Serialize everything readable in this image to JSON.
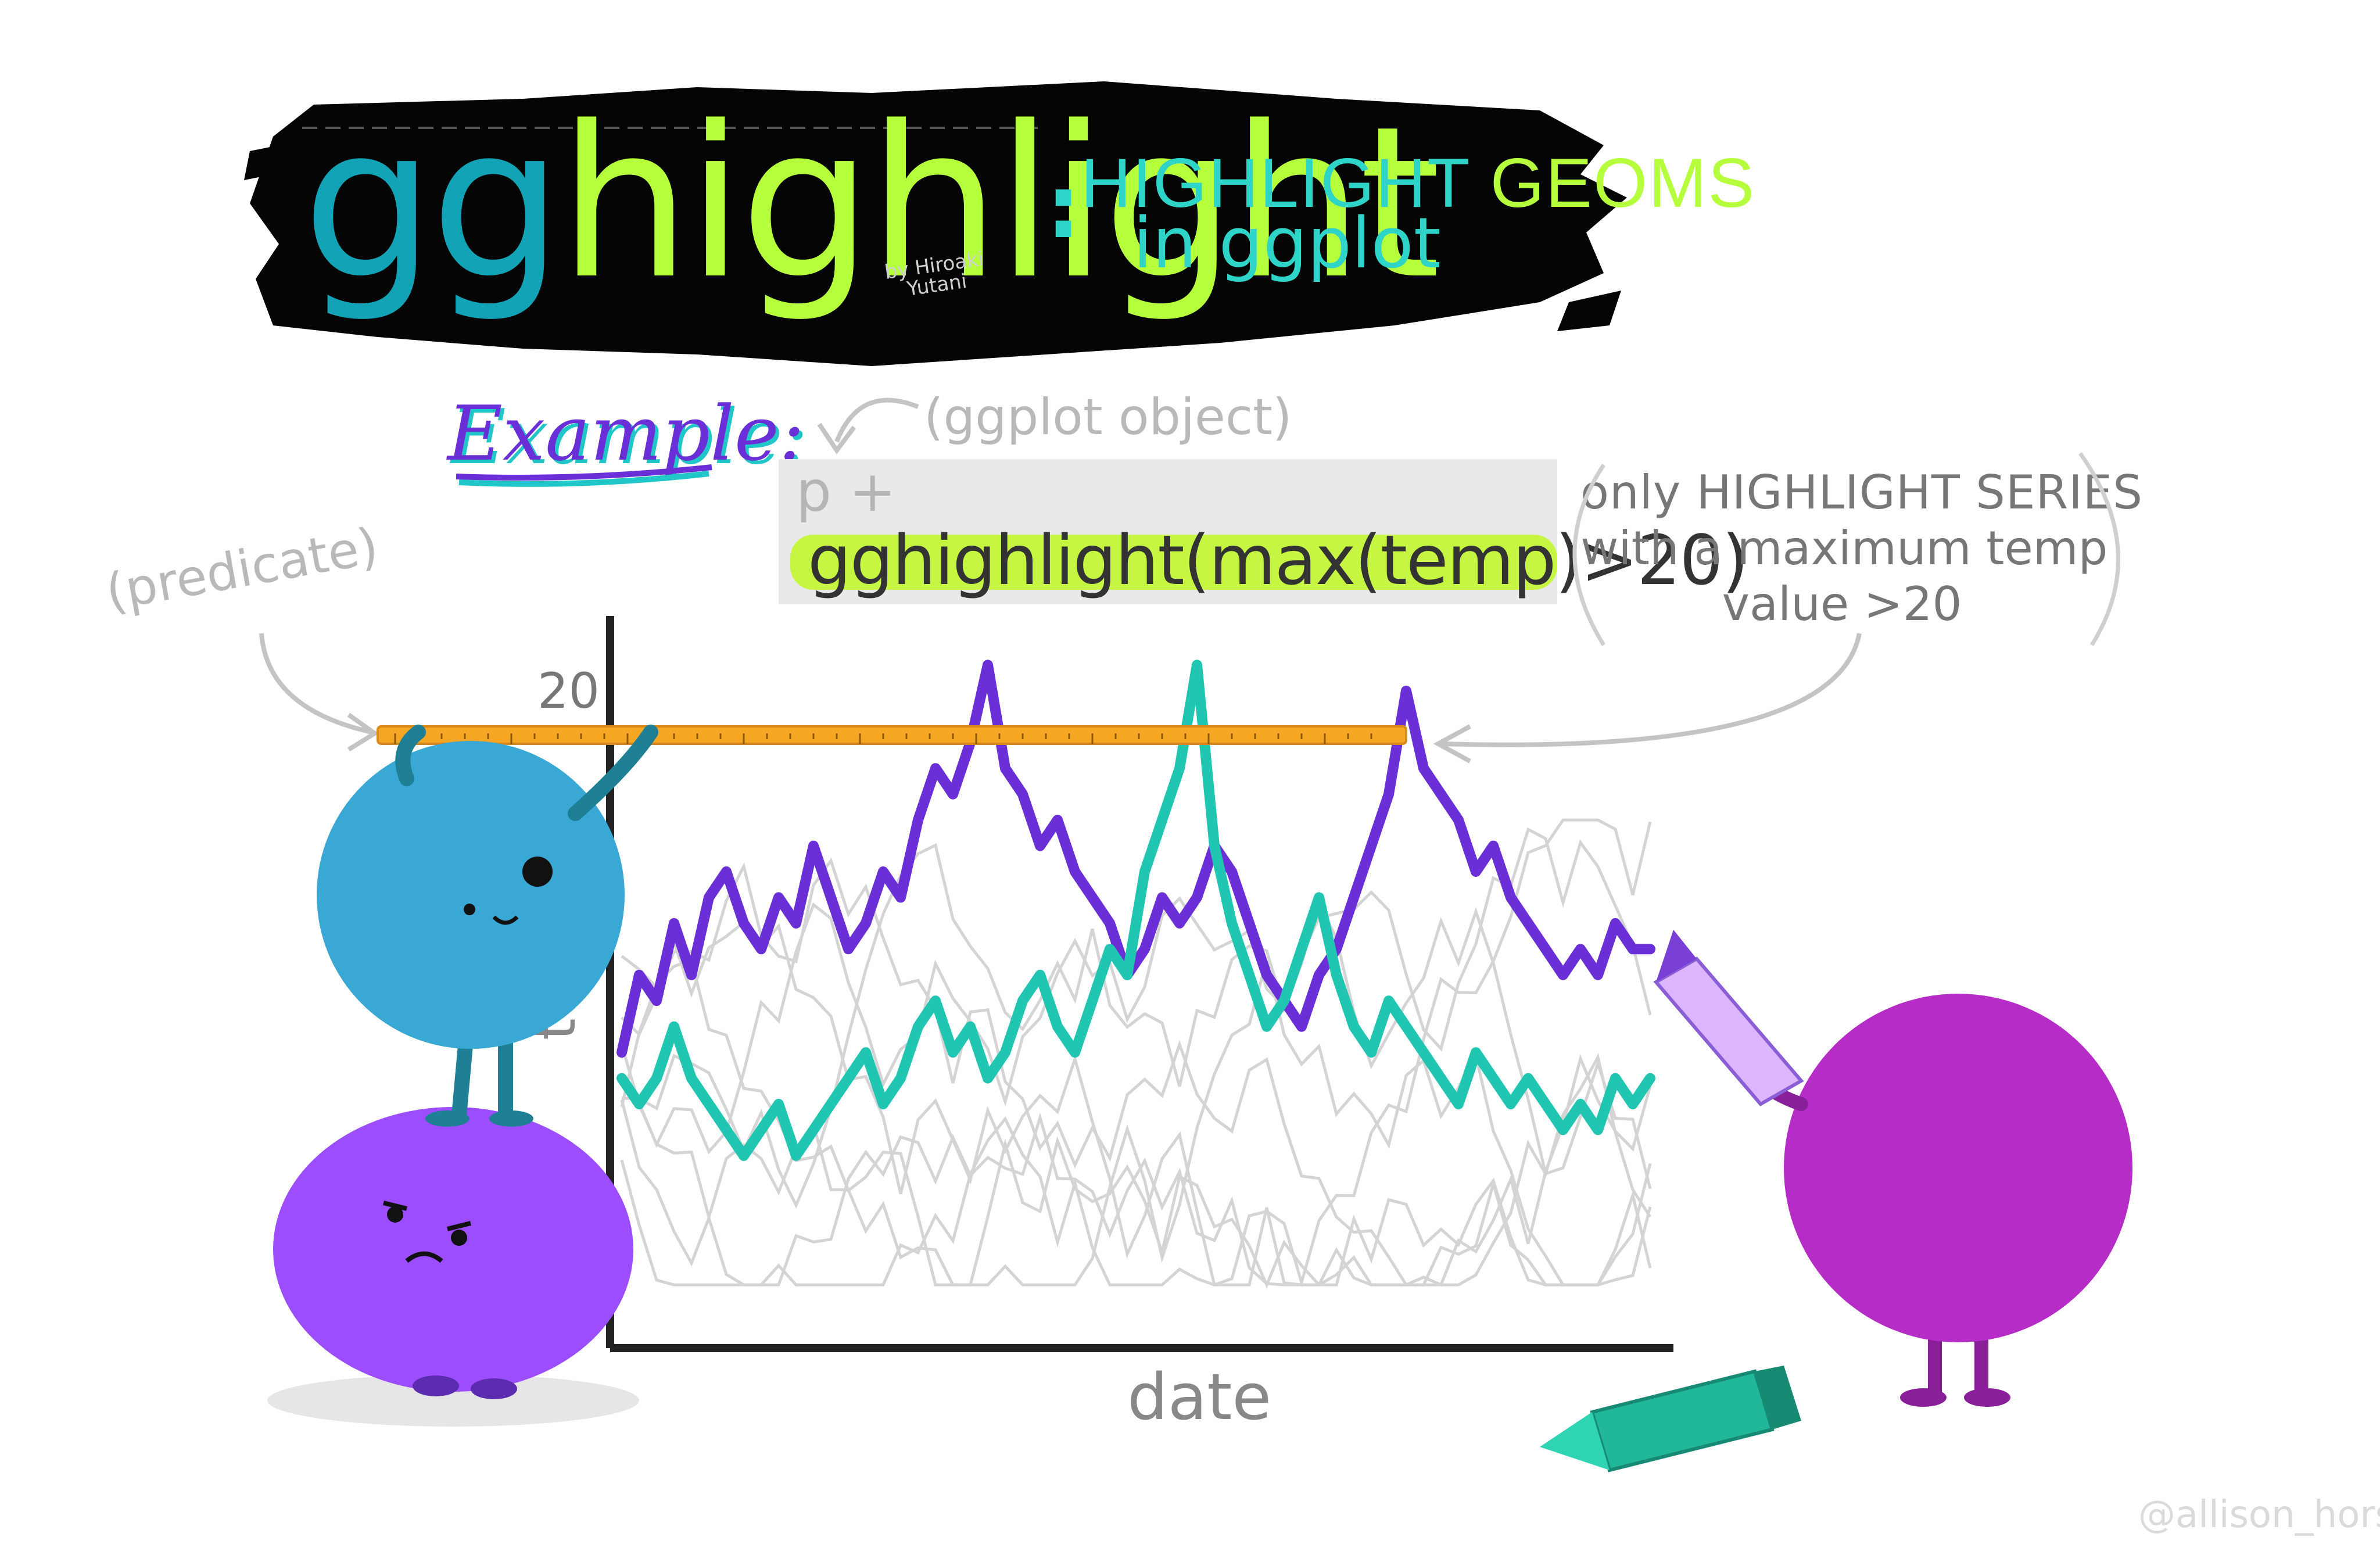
{
  "title": {
    "gg": "gg",
    "highlight": "highlight",
    "colon": ":",
    "subtitle_a": "HIGHLIGHT",
    "subtitle_b": "GEOMS",
    "subtitle_line2": "in ggplot",
    "byline": "by Hiroaki Yutani"
  },
  "example": {
    "label": "Example:",
    "object_note": "(ggplot object)",
    "code_line1": "p +",
    "code_line2": "gghighlight(max(temp)>20)"
  },
  "annotations": {
    "predicate": "(predicate)",
    "explain_line1": "only HIGHLIGHT SERIES",
    "explain_line2": "with a maximum temp",
    "explain_line3": "value >20"
  },
  "chart_labels": {
    "tick_20": "20",
    "ylabel": "temp",
    "xlabel": "date"
  },
  "watermark": "@allison_horst",
  "colors": {
    "banner": "#050505",
    "teal_title": "#12a3b6",
    "lime_title": "#b6ff3c",
    "purple_series": "#6a2fd6",
    "teal_series": "#21c6b3",
    "grey_series": "#d4d4d4",
    "ruler": "#f5a623",
    "monster_blue": "#3aa8d4",
    "monster_purple": "#9b4dff",
    "monster_magenta": "#b52cc6"
  },
  "chart_data": {
    "type": "line",
    "x": [
      1,
      2,
      3,
      4,
      5,
      6,
      7,
      8,
      9,
      10,
      11,
      12,
      13,
      14,
      15,
      16,
      17,
      18,
      19,
      20,
      21,
      22,
      23,
      24,
      25,
      26,
      27,
      28,
      29,
      30,
      31,
      32,
      33,
      34,
      35,
      36,
      37,
      38,
      39,
      40,
      41,
      42,
      43,
      44,
      45,
      46,
      47,
      48,
      49,
      50,
      51,
      52,
      53,
      54,
      55,
      56,
      57,
      58,
      59,
      60
    ],
    "threshold": 20,
    "series": [
      {
        "highlight": true,
        "color": "#6a2fd6",
        "values": [
          6,
          9,
          8,
          11,
          9,
          12,
          13,
          11,
          10,
          12,
          11,
          14,
          12,
          10,
          11,
          13,
          12,
          15,
          17,
          16,
          18,
          21,
          17,
          16,
          14,
          15,
          13,
          12,
          11,
          9,
          10,
          12,
          11,
          12,
          14,
          13,
          11,
          9,
          8,
          7,
          9,
          10,
          12,
          14,
          16,
          20,
          17,
          16,
          15,
          13,
          14,
          12,
          11,
          10,
          9,
          10,
          9,
          11,
          10,
          10
        ]
      },
      {
        "highlight": true,
        "color": "#21c6b3",
        "values": [
          5,
          4,
          5,
          7,
          5,
          4,
          3,
          2,
          3,
          4,
          2,
          3,
          4,
          5,
          6,
          4,
          5,
          7,
          8,
          6,
          7,
          5,
          6,
          8,
          9,
          7,
          6,
          8,
          10,
          9,
          13,
          15,
          17,
          21,
          14,
          11,
          9,
          7,
          8,
          10,
          12,
          9,
          7,
          6,
          8,
          7,
          6,
          5,
          4,
          6,
          5,
          4,
          5,
          4,
          3,
          4,
          3,
          5,
          4,
          5
        ]
      }
    ],
    "grey_series_count": 8,
    "xlabel": "date",
    "ylabel": "temp",
    "ylim": [
      -5,
      22
    ]
  }
}
